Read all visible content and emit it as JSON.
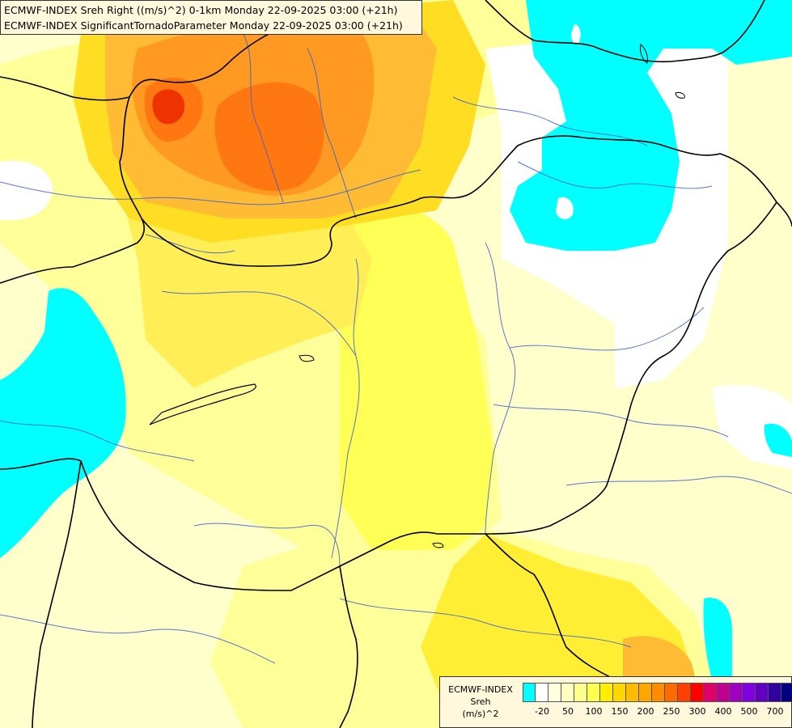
{
  "header": {
    "line1": "ECMWF-INDEX Sreh Right ((m/s)^2) 0-1km Monday 22-09-2025 03:00 (+21h)",
    "line2": "ECMWF-INDEX SignificantTornadoParameter Monday 22-09-2025 03:00 (+21h)"
  },
  "legend": {
    "model": "ECMWF-INDEX",
    "parameter": "Sreh",
    "unit": "(m/s)^2",
    "colors": [
      "#00ffff",
      "#ffffff",
      "#ffffe0",
      "#ffffc0",
      "#ffff90",
      "#ffff50",
      "#ffee00",
      "#ffd700",
      "#ffbb00",
      "#ffa500",
      "#ff8c00",
      "#ff6a00",
      "#ff4000",
      "#ff0000",
      "#e0006a",
      "#c00090",
      "#a000c0",
      "#8000e0",
      "#6000c0",
      "#3000a0",
      "#000080"
    ],
    "labels": [
      "-20",
      "50",
      "100",
      "150",
      "200",
      "250",
      "300",
      "400",
      "500",
      "700"
    ]
  },
  "map": {
    "palette": {
      "cyan": "#00ffff",
      "white": "#ffffff",
      "pale": "#ffffcc",
      "light": "#ffff99",
      "yellow": "#ffff55",
      "gold": "#ffdd22",
      "orange_light": "#ffbb33",
      "orange": "#ff9922",
      "orange_dark": "#ff7711",
      "red": "#ee3300",
      "border": "#000000",
      "river": "#3a5fcd"
    }
  }
}
